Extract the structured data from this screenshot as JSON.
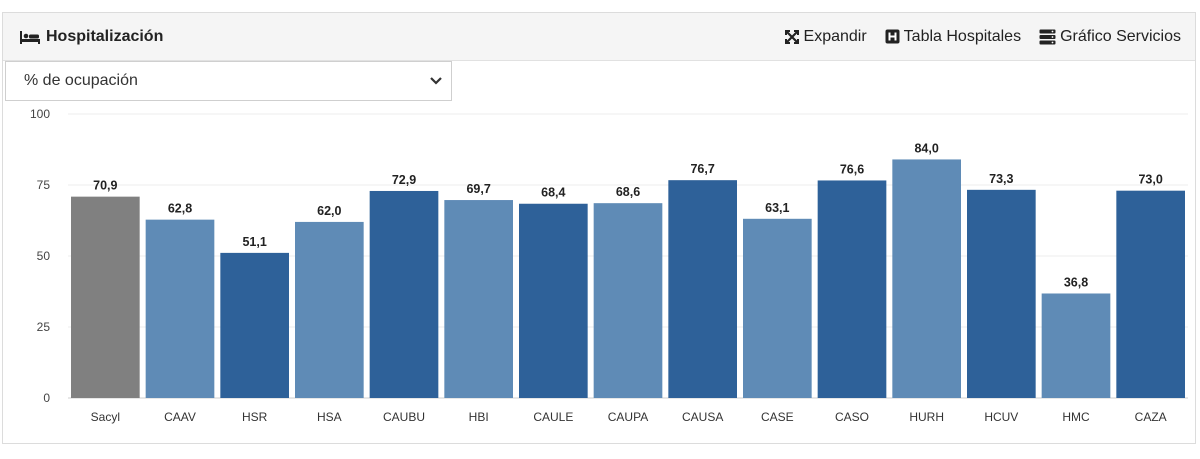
{
  "header": {
    "title": "Hospitalización",
    "actions": [
      {
        "label": "Expandir",
        "icon": "expand-icon"
      },
      {
        "label": "Tabla Hospitales",
        "icon": "hospital-icon"
      },
      {
        "label": "Gráfico Servicios",
        "icon": "server-icon"
      }
    ]
  },
  "select": {
    "value": "% de ocupación"
  },
  "colors": {
    "gray": "#808080",
    "light": "#5f8bb6",
    "dark": "#2e6199"
  },
  "chart_data": {
    "type": "bar",
    "categories": [
      "Sacyl",
      "CAAV",
      "HSR",
      "HSA",
      "CAUBU",
      "HBI",
      "CAULE",
      "CAUPA",
      "CAUSA",
      "CASE",
      "CASO",
      "HURH",
      "HCUV",
      "HMC",
      "CAZA"
    ],
    "values": [
      70.9,
      62.8,
      51.1,
      62.0,
      72.9,
      69.7,
      68.4,
      68.6,
      76.7,
      63.1,
      76.6,
      84.0,
      73.3,
      36.8,
      73.0
    ],
    "value_labels": [
      "70,9",
      "62,8",
      "51,1",
      "62,0",
      "72,9",
      "69,7",
      "68,4",
      "68,6",
      "76,7",
      "63,1",
      "76,6",
      "84,0",
      "73,3",
      "36,8",
      "73,0"
    ],
    "bar_colors": [
      "gray",
      "light",
      "dark",
      "light",
      "dark",
      "light",
      "dark",
      "light",
      "dark",
      "light",
      "dark",
      "light",
      "dark",
      "light",
      "dark"
    ],
    "ylim": [
      0,
      100
    ],
    "yticks": [
      0,
      25,
      50,
      75,
      100
    ],
    "grid": true,
    "title": "",
    "xlabel": "",
    "ylabel": ""
  }
}
